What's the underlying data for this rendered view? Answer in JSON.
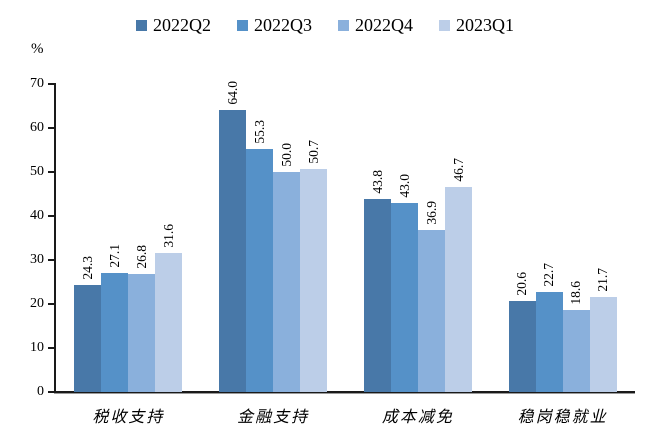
{
  "chart_data": {
    "type": "bar",
    "title": "",
    "xlabel": "",
    "ylabel": "%",
    "ylim": [
      0,
      70
    ],
    "yticks": [
      0,
      10,
      20,
      30,
      40,
      50,
      60,
      70
    ],
    "grid": false,
    "legend_position": "top-center",
    "value_labels": "shown above bars, rotated 90 degrees, 1 decimal place",
    "categories": [
      "税收支持",
      "金融支持",
      "成本减免",
      "稳岗稳就业"
    ],
    "series": [
      {
        "name": "2022Q2",
        "color": "#4878A8",
        "values": [
          24.3,
          64.0,
          43.8,
          20.6
        ]
      },
      {
        "name": "2022Q3",
        "color": "#5591C8",
        "values": [
          27.1,
          55.3,
          43.0,
          22.7
        ]
      },
      {
        "name": "2022Q4",
        "color": "#8AB0DC",
        "values": [
          26.8,
          50.0,
          36.9,
          18.6
        ]
      },
      {
        "name": "2023Q1",
        "color": "#BCCEE8",
        "values": [
          31.6,
          50.7,
          46.7,
          21.7
        ]
      }
    ],
    "axis_color": "#1a1a1a",
    "text_color": "#000000"
  }
}
